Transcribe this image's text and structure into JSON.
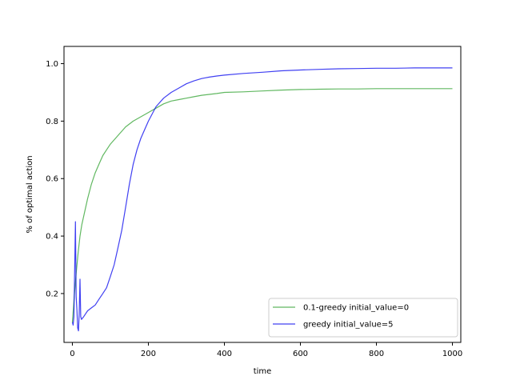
{
  "chart_data": {
    "type": "line",
    "title": "",
    "xlabel": "time",
    "ylabel": "% of optimal action",
    "xlim": [
      -22,
      1022
    ],
    "ylim": [
      0.03,
      1.06
    ],
    "xticks": [
      0,
      200,
      400,
      600,
      800,
      1000
    ],
    "xtick_labels": [
      "0",
      "200",
      "400",
      "600",
      "800",
      "1000"
    ],
    "yticks": [
      0.2,
      0.4,
      0.6,
      0.8,
      1.0
    ],
    "ytick_labels": [
      "0.2",
      "0.4",
      "0.6",
      "0.8",
      "1.0"
    ],
    "grid": false,
    "legend_position": "lower-right",
    "series": [
      {
        "name": "0.1-greedy initial_value=0",
        "color": "#2ca02c",
        "x": [
          0,
          5,
          10,
          15,
          20,
          25,
          30,
          40,
          50,
          60,
          70,
          80,
          90,
          100,
          120,
          140,
          160,
          180,
          200,
          220,
          240,
          260,
          280,
          300,
          320,
          340,
          360,
          380,
          400,
          450,
          500,
          550,
          600,
          650,
          700,
          750,
          800,
          850,
          900,
          950,
          1000
        ],
        "values": [
          0.1,
          0.19,
          0.27,
          0.34,
          0.4,
          0.44,
          0.47,
          0.53,
          0.58,
          0.62,
          0.65,
          0.68,
          0.7,
          0.72,
          0.75,
          0.78,
          0.8,
          0.815,
          0.83,
          0.845,
          0.86,
          0.87,
          0.875,
          0.88,
          0.885,
          0.89,
          0.893,
          0.896,
          0.9,
          0.902,
          0.905,
          0.908,
          0.91,
          0.911,
          0.912,
          0.912,
          0.913,
          0.913,
          0.913,
          0.913,
          0.913
        ]
      },
      {
        "name": "greedy initial_value=5",
        "color": "#0000ee",
        "x": [
          0,
          2,
          4,
          6,
          8,
          10,
          12,
          14,
          16,
          18,
          20,
          22,
          24,
          30,
          40,
          50,
          60,
          70,
          80,
          90,
          100,
          110,
          120,
          130,
          140,
          150,
          160,
          170,
          180,
          190,
          200,
          220,
          240,
          260,
          280,
          300,
          320,
          340,
          360,
          380,
          400,
          450,
          500,
          550,
          600,
          650,
          700,
          750,
          800,
          850,
          900,
          950,
          1000
        ],
        "values": [
          0.1,
          0.09,
          0.12,
          0.28,
          0.45,
          0.19,
          0.14,
          0.08,
          0.07,
          0.13,
          0.25,
          0.12,
          0.11,
          0.12,
          0.14,
          0.15,
          0.16,
          0.18,
          0.2,
          0.22,
          0.26,
          0.3,
          0.36,
          0.42,
          0.5,
          0.58,
          0.65,
          0.7,
          0.74,
          0.77,
          0.8,
          0.85,
          0.88,
          0.9,
          0.915,
          0.93,
          0.94,
          0.948,
          0.953,
          0.957,
          0.96,
          0.966,
          0.97,
          0.975,
          0.978,
          0.98,
          0.982,
          0.983,
          0.984,
          0.984,
          0.985,
          0.985,
          0.985
        ]
      }
    ]
  }
}
